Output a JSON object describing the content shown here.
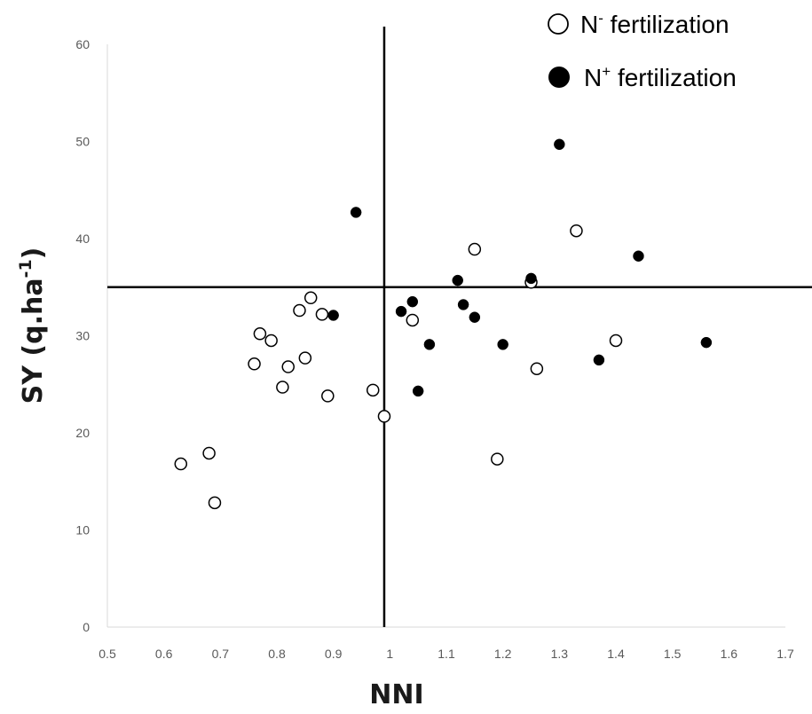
{
  "chart_data": {
    "type": "scatter",
    "xlabel": "NNI",
    "ylabel": "SY (q.ha",
    "ylabel_sup": "-1",
    "ylabel_tail": ")",
    "xlim": [
      0.5,
      1.7
    ],
    "ylim": [
      0,
      60
    ],
    "x_ticks": [
      "0.5",
      "0.6",
      "0.7",
      "0.8",
      "0.9",
      "1",
      "1.1",
      "1.2",
      "1.3",
      "1.4",
      "1.5",
      "1.6",
      "1.7"
    ],
    "y_ticks": [
      "0",
      "10",
      "20",
      "30",
      "40",
      "50",
      "60"
    ],
    "reference_lines": {
      "vertical_x": 0.99,
      "horizontal_y": 35
    },
    "grid": false,
    "legend_position": "top-right",
    "series": [
      {
        "name": "N",
        "name_sup": "-",
        "name_tail": " fertilization",
        "marker": "open-circle",
        "color": "#000000",
        "points": [
          [
            0.63,
            16.8
          ],
          [
            0.68,
            17.9
          ],
          [
            0.69,
            12.8
          ],
          [
            0.76,
            27.1
          ],
          [
            0.77,
            30.2
          ],
          [
            0.79,
            29.5
          ],
          [
            0.81,
            24.7
          ],
          [
            0.82,
            26.8
          ],
          [
            0.84,
            32.6
          ],
          [
            0.85,
            27.7
          ],
          [
            0.86,
            33.9
          ],
          [
            0.88,
            32.2
          ],
          [
            0.89,
            23.8
          ],
          [
            0.97,
            24.4
          ],
          [
            0.99,
            21.7
          ],
          [
            1.04,
            31.6
          ],
          [
            1.15,
            38.9
          ],
          [
            1.19,
            17.3
          ],
          [
            1.25,
            35.5
          ],
          [
            1.26,
            26.6
          ],
          [
            1.33,
            40.8
          ],
          [
            1.4,
            29.5
          ]
        ]
      },
      {
        "name": "N",
        "name_sup": "+",
        "name_tail": " fertilization",
        "marker": "filled-circle",
        "color": "#000000",
        "points": [
          [
            0.9,
            32.1
          ],
          [
            0.94,
            42.7
          ],
          [
            1.02,
            32.5
          ],
          [
            1.04,
            33.5
          ],
          [
            1.05,
            24.3
          ],
          [
            1.07,
            29.1
          ],
          [
            1.12,
            35.7
          ],
          [
            1.13,
            33.2
          ],
          [
            1.15,
            31.9
          ],
          [
            1.2,
            29.1
          ],
          [
            1.25,
            35.9
          ],
          [
            1.3,
            49.7
          ],
          [
            1.37,
            27.5
          ],
          [
            1.44,
            38.2
          ],
          [
            1.56,
            29.3
          ]
        ]
      }
    ]
  }
}
